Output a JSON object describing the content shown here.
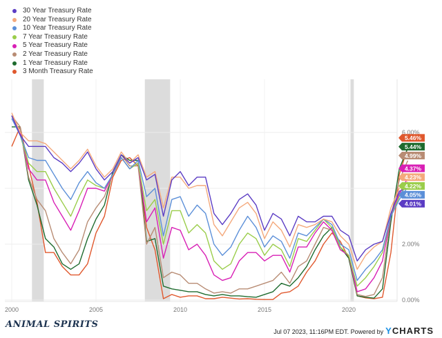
{
  "chart_data": {
    "type": "line",
    "x": [
      2000,
      2000.5,
      2001,
      2001.5,
      2002,
      2002.5,
      2003,
      2003.5,
      2004,
      2004.5,
      2005,
      2005.5,
      2006,
      2006.5,
      2007,
      2007.5,
      2008,
      2008.5,
      2009,
      2009.5,
      2010,
      2010.5,
      2011,
      2011.5,
      2012,
      2012.5,
      2013,
      2013.5,
      2014,
      2014.5,
      2015,
      2015.5,
      2016,
      2016.5,
      2017,
      2017.5,
      2018,
      2018.5,
      2019,
      2019.5,
      2020,
      2020.5,
      2021,
      2021.5,
      2022,
      2022.5,
      2023,
      2023.5
    ],
    "xticks": [
      "2000",
      "2005",
      "2010",
      "2015",
      "2020"
    ],
    "xtick_values": [
      2000,
      2005,
      2010,
      2015,
      2020
    ],
    "yticks": [
      "6.00%",
      "2.00%",
      "0.00%"
    ],
    "ytick_values": [
      6,
      2,
      0
    ],
    "ylim": [
      0,
      7.8
    ],
    "recessions": [
      [
        2001.2,
        2001.9
      ],
      [
        2007.9,
        2009.4
      ],
      [
        2020.1,
        2020.3
      ]
    ],
    "series": [
      {
        "name": "30 Year Treasury Rate",
        "color": "#5b3cc4",
        "last": "4.01%",
        "values": [
          6.6,
          5.9,
          5.5,
          5.5,
          5.5,
          5.1,
          4.9,
          4.6,
          4.9,
          5.3,
          4.7,
          4.3,
          4.6,
          5.2,
          4.9,
          5.1,
          4.3,
          4.5,
          3.0,
          4.3,
          4.6,
          4.1,
          4.4,
          4.4,
          3.1,
          2.7,
          3.1,
          3.6,
          3.8,
          3.4,
          2.5,
          3.1,
          2.9,
          2.3,
          3.0,
          2.8,
          2.8,
          3.0,
          3.0,
          2.5,
          2.3,
          1.4,
          1.8,
          2.0,
          2.1,
          3.1,
          3.9,
          4.01
        ]
      },
      {
        "name": "20 Year Treasury Rate",
        "color": "#f4a97c",
        "last": "4.23%",
        "values": [
          6.7,
          6.0,
          5.7,
          5.7,
          5.6,
          5.3,
          5.0,
          4.7,
          5.0,
          5.4,
          4.8,
          4.4,
          4.7,
          5.3,
          4.9,
          5.2,
          4.4,
          4.6,
          3.3,
          4.4,
          4.4,
          4.0,
          4.1,
          4.1,
          2.7,
          2.3,
          2.8,
          3.3,
          3.5,
          3.1,
          2.2,
          2.8,
          2.5,
          1.9,
          2.7,
          2.6,
          2.7,
          2.9,
          2.8,
          2.3,
          2.0,
          1.1,
          1.6,
          1.9,
          2.1,
          3.3,
          4.0,
          4.23
        ]
      },
      {
        "name": "10 Year Treasury Rate",
        "color": "#5b8fd8",
        "last": "4.05%",
        "values": [
          6.5,
          5.9,
          5.1,
          5.0,
          5.0,
          4.5,
          4.0,
          3.6,
          4.2,
          4.6,
          4.2,
          4.0,
          4.5,
          5.1,
          4.7,
          5.0,
          3.7,
          4.0,
          2.3,
          3.6,
          3.7,
          3.0,
          3.4,
          3.1,
          2.0,
          1.6,
          1.9,
          2.5,
          3.0,
          2.6,
          1.9,
          2.3,
          2.1,
          1.5,
          2.4,
          2.3,
          2.6,
          2.9,
          2.7,
          2.0,
          1.8,
          0.7,
          1.1,
          1.4,
          1.8,
          3.0,
          3.6,
          4.05
        ]
      },
      {
        "name": "7 Year Treasury Rate",
        "color": "#9acd4a",
        "last": "4.22%",
        "values": [
          6.6,
          5.9,
          4.9,
          4.6,
          4.6,
          4.0,
          3.5,
          3.0,
          3.7,
          4.3,
          4.1,
          4.0,
          4.5,
          5.1,
          4.7,
          4.9,
          3.2,
          3.6,
          2.0,
          3.2,
          3.2,
          2.4,
          2.7,
          2.4,
          1.4,
          1.1,
          1.3,
          2.0,
          2.4,
          2.2,
          1.6,
          2.0,
          1.8,
          1.2,
          2.2,
          2.1,
          2.5,
          2.9,
          2.6,
          1.9,
          1.6,
          0.5,
          0.8,
          1.2,
          1.7,
          3.0,
          3.7,
          4.22
        ]
      },
      {
        "name": "5 Year Treasury Rate",
        "color": "#d81fb5",
        "last": "4.37%",
        "values": [
          6.6,
          6.0,
          4.7,
          4.3,
          4.3,
          3.5,
          3.0,
          2.5,
          3.2,
          4.0,
          4.0,
          3.9,
          4.5,
          5.1,
          4.7,
          4.9,
          2.8,
          3.3,
          1.5,
          2.6,
          2.5,
          1.8,
          2.0,
          1.6,
          0.9,
          0.7,
          0.8,
          1.4,
          1.7,
          1.7,
          1.4,
          1.6,
          1.6,
          1.0,
          1.9,
          1.9,
          2.4,
          2.8,
          2.5,
          1.8,
          1.6,
          0.3,
          0.4,
          0.8,
          1.4,
          3.0,
          3.8,
          4.37
        ]
      },
      {
        "name": "2 Year Treasury Rate",
        "color": "#b88c74",
        "last": "4.99%",
        "values": [
          6.6,
          6.2,
          4.4,
          3.6,
          3.2,
          2.2,
          1.7,
          1.3,
          1.8,
          2.8,
          3.3,
          3.7,
          4.5,
          5.2,
          4.8,
          4.8,
          2.0,
          2.6,
          0.8,
          1.0,
          0.9,
          0.6,
          0.6,
          0.4,
          0.25,
          0.3,
          0.25,
          0.4,
          0.4,
          0.5,
          0.6,
          0.7,
          1.0,
          0.6,
          1.2,
          1.4,
          2.0,
          2.6,
          2.5,
          1.8,
          1.6,
          0.2,
          0.13,
          0.2,
          0.8,
          3.0,
          4.3,
          4.99
        ]
      },
      {
        "name": "1 Year Treasury Rate",
        "color": "#1e6b2e",
        "last": "5.44%",
        "values": [
          6.2,
          6.2,
          4.3,
          3.4,
          2.2,
          1.9,
          1.3,
          1.1,
          1.3,
          2.2,
          2.9,
          3.4,
          4.6,
          5.2,
          5.0,
          5.0,
          2.1,
          2.2,
          0.5,
          0.4,
          0.35,
          0.3,
          0.3,
          0.2,
          0.15,
          0.2,
          0.15,
          0.15,
          0.12,
          0.1,
          0.2,
          0.3,
          0.6,
          0.5,
          0.8,
          1.2,
          1.8,
          2.3,
          2.6,
          1.9,
          1.5,
          0.15,
          0.1,
          0.07,
          0.4,
          2.8,
          4.7,
          5.44
        ]
      },
      {
        "name": "3 Month Treasury Rate",
        "color": "#e0582d",
        "last": "5.46%",
        "values": [
          5.5,
          6.2,
          4.8,
          3.5,
          1.7,
          1.7,
          1.2,
          0.9,
          0.9,
          1.3,
          2.4,
          3.0,
          4.4,
          5.0,
          5.1,
          4.8,
          2.6,
          1.8,
          0.05,
          0.2,
          0.1,
          0.15,
          0.15,
          0.05,
          0.05,
          0.1,
          0.07,
          0.04,
          0.05,
          0.03,
          0.02,
          0.02,
          0.25,
          0.3,
          0.5,
          1.0,
          1.4,
          2.0,
          2.4,
          2.1,
          1.5,
          0.15,
          0.08,
          0.05,
          0.1,
          1.7,
          4.5,
          5.46
        ]
      }
    ]
  },
  "footer": {
    "logo": "ANIMAL SPIRITS",
    "timestamp": "Jul 07 2023, 11:16PM EDT. Powered by",
    "brand_y": "Y",
    "brand_rest": "CHARTS"
  }
}
